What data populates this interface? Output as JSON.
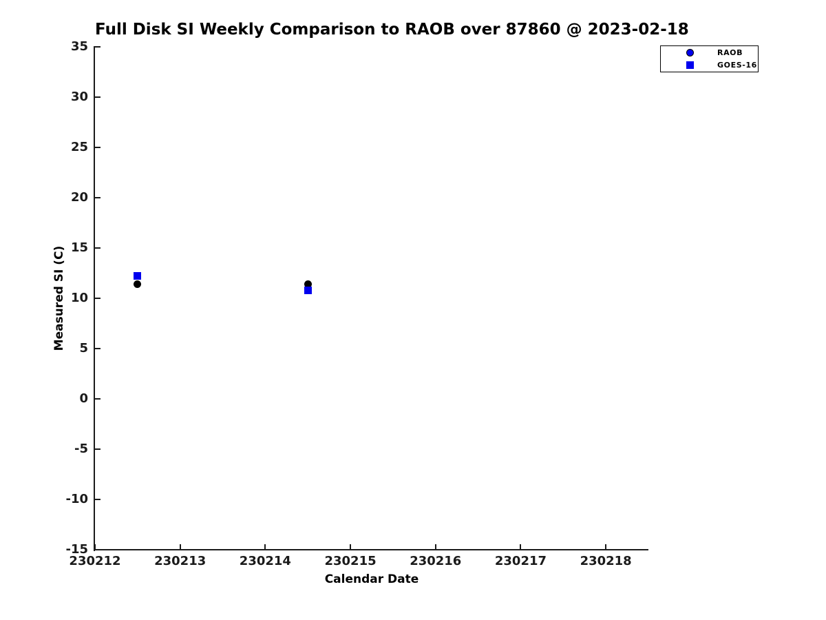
{
  "page": {
    "background": "#ffffff"
  },
  "chart_data": {
    "type": "scatter",
    "title": "Full Disk SI Weekly Comparison to RAOB over 87860 @ 2023-02-18",
    "xlabel": "Calendar Date",
    "ylabel": "Measured SI (C)",
    "xlim": [
      230212,
      230218.5
    ],
    "ylim": [
      -15,
      35
    ],
    "xticks": [
      230212,
      230213,
      230214,
      230215,
      230216,
      230217,
      230218
    ],
    "yticks": [
      35,
      30,
      25,
      20,
      15,
      10,
      5,
      0,
      -5,
      -10,
      -15
    ],
    "grid": false,
    "axis_color": "#1a1a1a",
    "legend_position": "top-right",
    "series": [
      {
        "name": "RAOB",
        "marker": "circle",
        "plot_color": "#000000",
        "legend_color": "#0000ee",
        "points": [
          [
            230212.5,
            11.4
          ],
          [
            230214.5,
            11.4
          ]
        ]
      },
      {
        "name": "GOES-16",
        "marker": "square",
        "plot_color": "#0000ee",
        "legend_color": "#0000ee",
        "points": [
          [
            230212.5,
            12.2
          ],
          [
            230214.5,
            10.8
          ]
        ]
      }
    ]
  }
}
